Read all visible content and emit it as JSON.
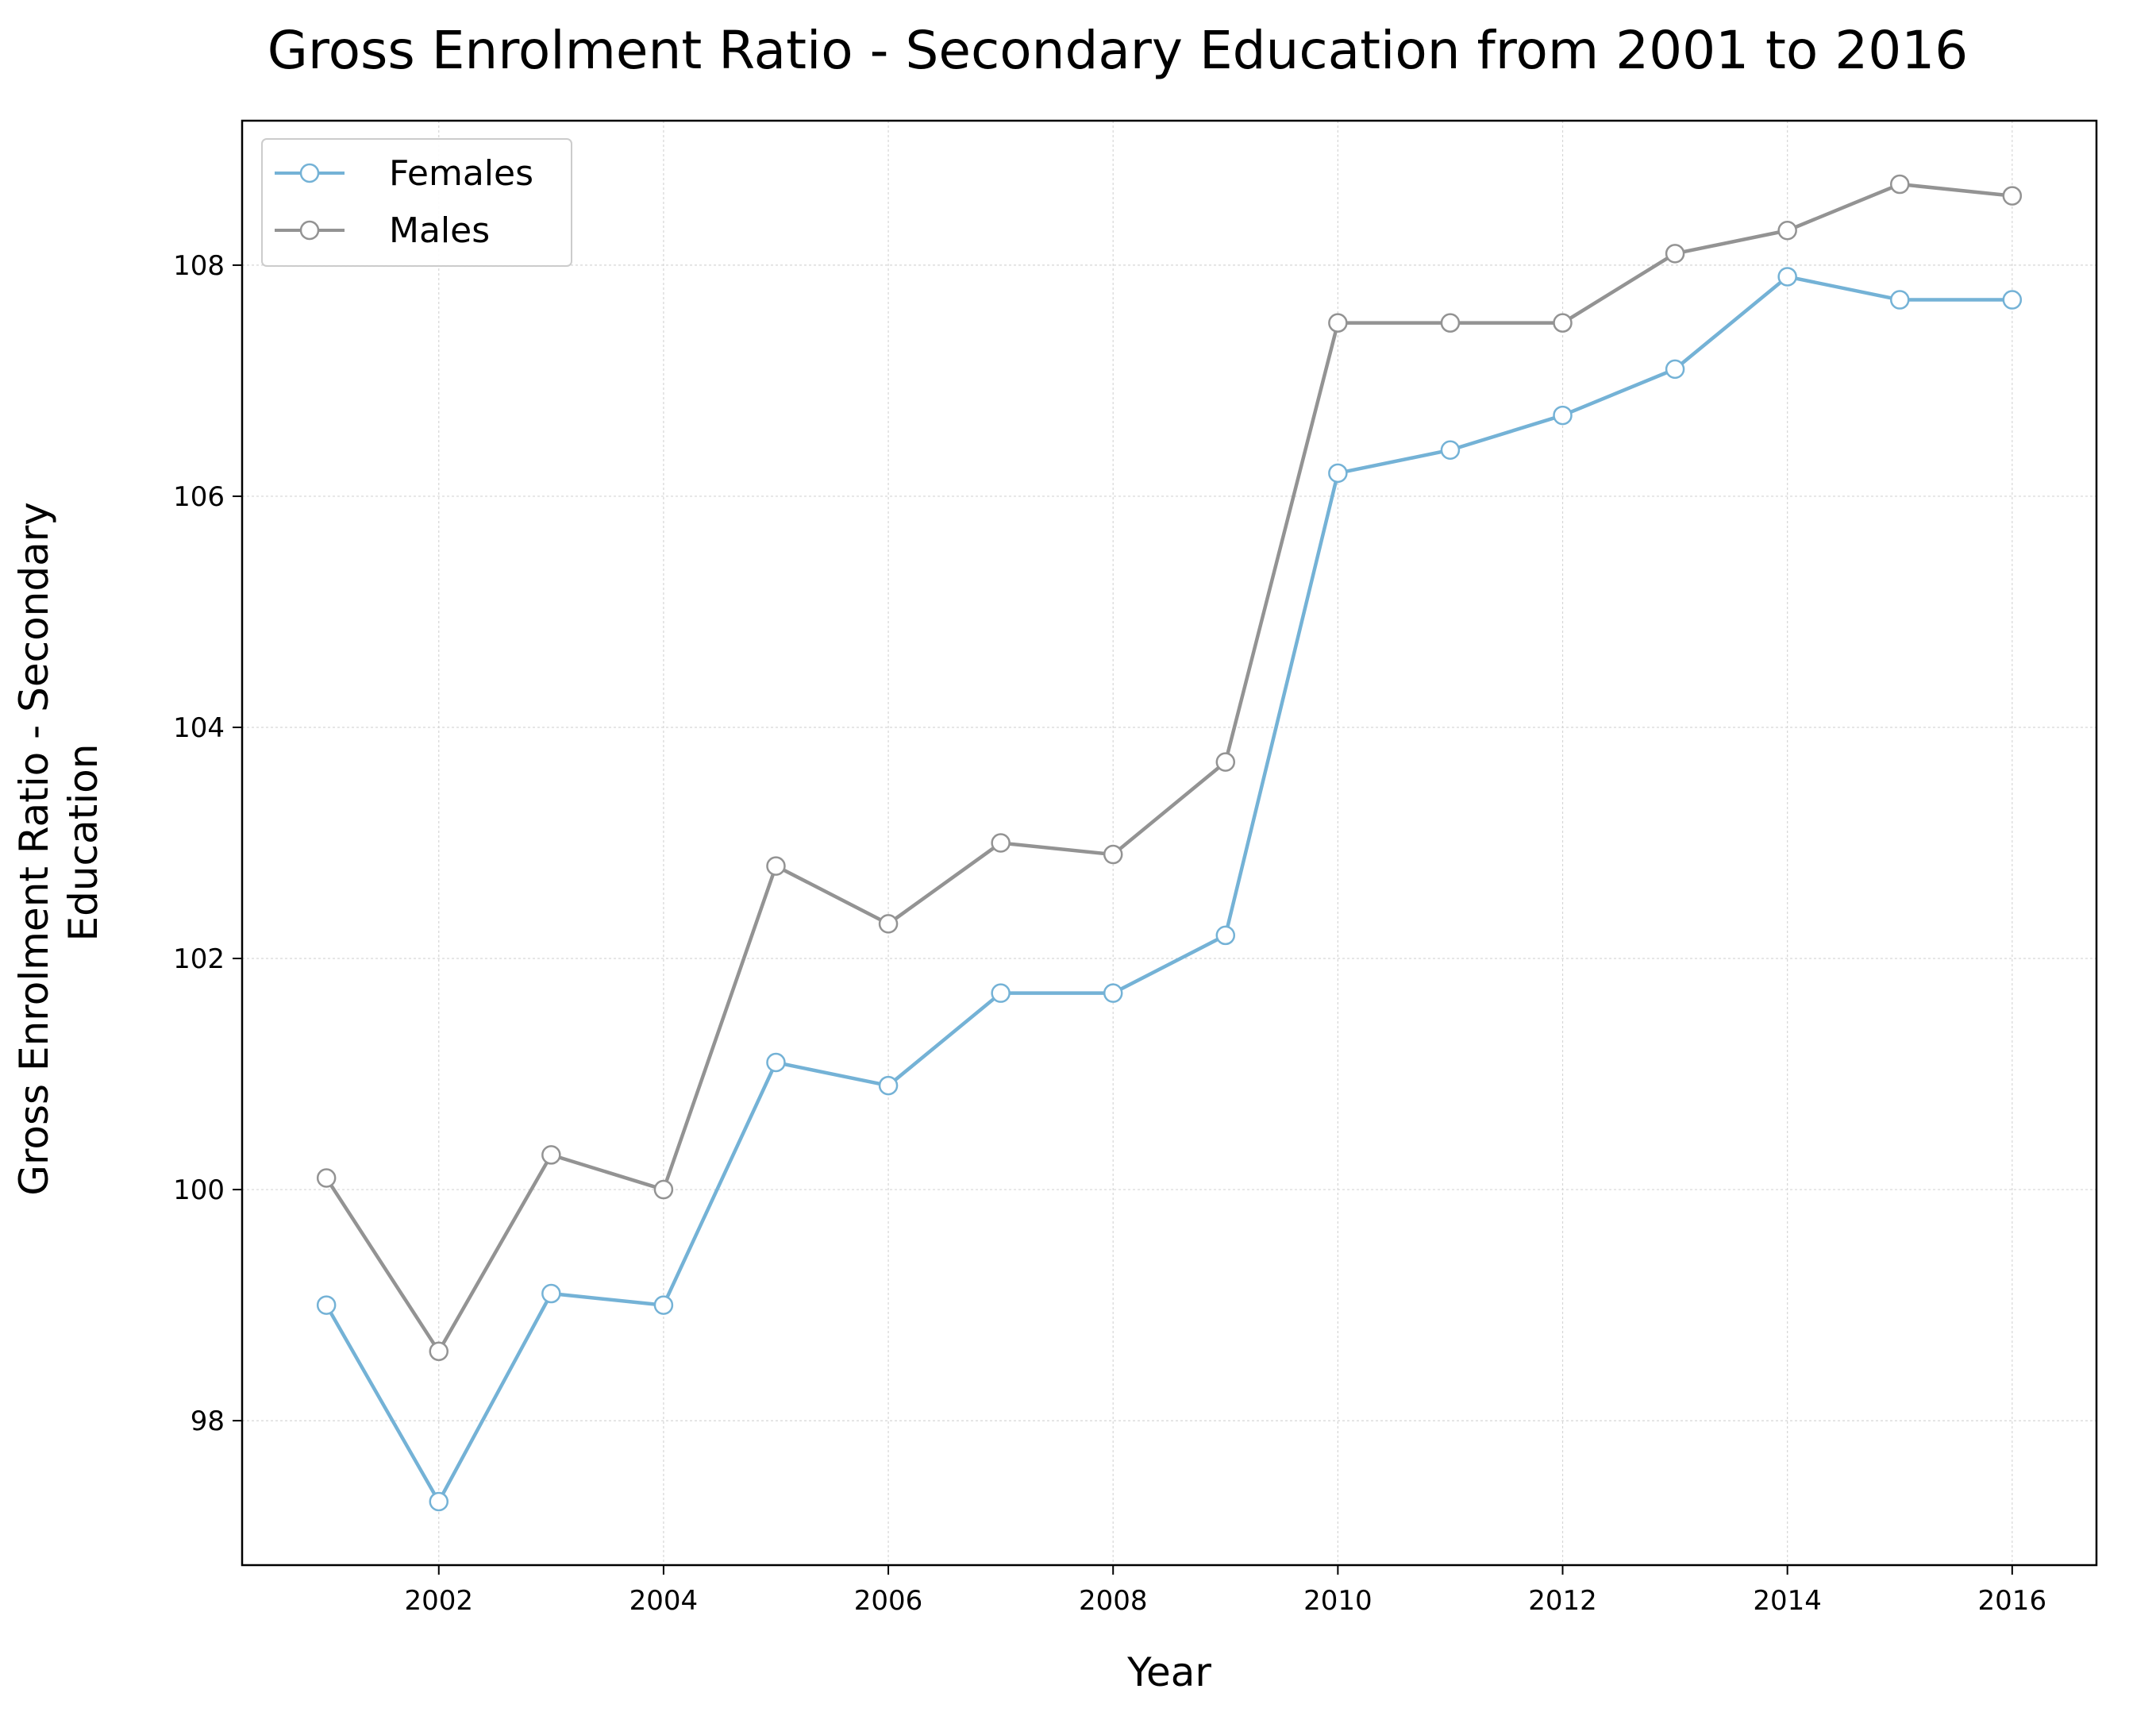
{
  "chart_data": {
    "type": "line",
    "title": "Gross Enrolment Ratio - Secondary Education from 2001 to 2016",
    "xlabel": "Year",
    "ylabel_lines": [
      "Gross Enrolment Ratio - Secondary",
      "Education"
    ],
    "x": [
      2001,
      2002,
      2003,
      2004,
      2005,
      2006,
      2007,
      2008,
      2009,
      2010,
      2011,
      2012,
      2013,
      2014,
      2015,
      2016
    ],
    "xlim": [
      2000.25,
      2016.75
    ],
    "ylim": [
      96.75,
      109.25
    ],
    "xticks": [
      2002,
      2004,
      2006,
      2008,
      2010,
      2012,
      2014,
      2016
    ],
    "yticks": [
      98,
      100,
      102,
      104,
      106,
      108
    ],
    "grid": true,
    "legend_position": "top-left",
    "series": [
      {
        "name": "Females",
        "color": "#74b2d6",
        "values": [
          99.0,
          97.3,
          99.1,
          99.0,
          101.1,
          100.9,
          101.7,
          101.7,
          102.2,
          106.2,
          106.4,
          106.7,
          107.1,
          107.9,
          107.7,
          107.7
        ]
      },
      {
        "name": "Males",
        "color": "#939393",
        "values": [
          100.1,
          98.6,
          100.3,
          100.0,
          102.8,
          102.3,
          103.0,
          102.9,
          103.7,
          107.5,
          107.5,
          107.5,
          108.1,
          108.3,
          108.7,
          108.6
        ]
      }
    ]
  }
}
